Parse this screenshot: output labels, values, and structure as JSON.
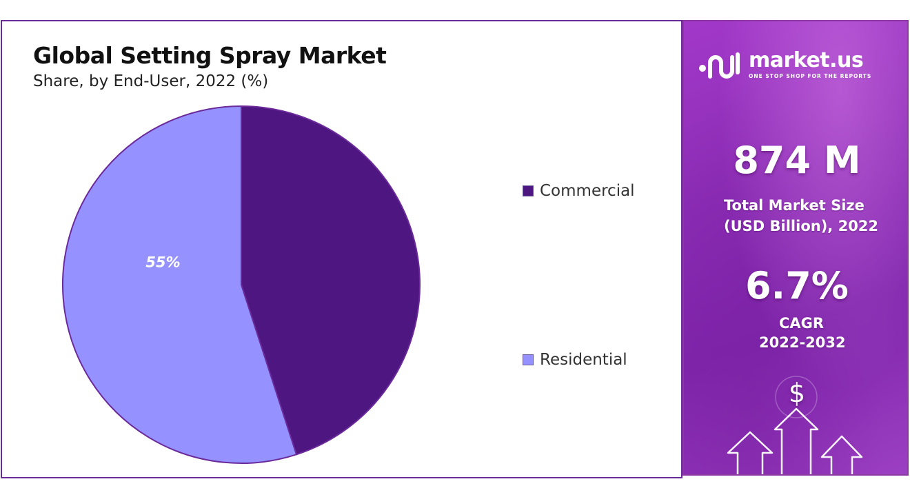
{
  "chart_data": {
    "type": "pie",
    "title": "Global Setting Spray Market",
    "subtitle": "Share, by End-User, 2022 (%)",
    "slices": [
      {
        "label": "Commercial",
        "value": 45,
        "color": "#4e1680"
      },
      {
        "label": "Residential",
        "value": 55,
        "color": "#9591ff",
        "data_label": "55%"
      }
    ],
    "legend_position": "right"
  },
  "side_panel": {
    "logo_name": "market.us",
    "logo_tagline": "ONE STOP SHOP FOR THE REPORTS",
    "market_size_value": "874 M",
    "market_size_label_line1": "Total Market Size",
    "market_size_label_line2": "(USD Billion), 2022",
    "cagr_value": "6.7%",
    "cagr_label_line1": "CAGR",
    "cagr_label_line2": "2022-2032",
    "currency_symbol": "$"
  },
  "colors": {
    "border": "#6a2a9a",
    "commercial": "#4e1680",
    "residential": "#9591ff"
  }
}
